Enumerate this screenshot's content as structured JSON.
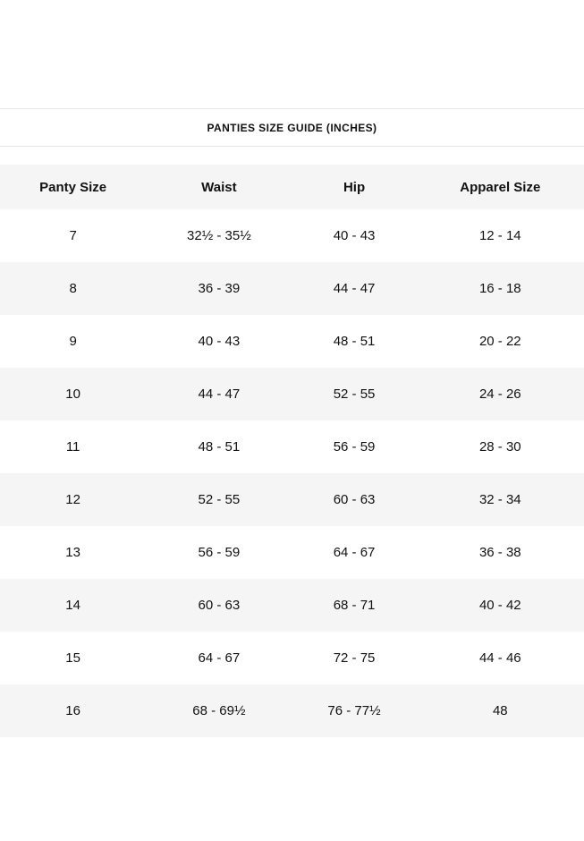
{
  "title": "PANTIES SIZE GUIDE (INCHES)",
  "table": {
    "headers": [
      "Panty Size",
      "Waist",
      "Hip",
      "Apparel Size"
    ],
    "rows": [
      [
        "7",
        "32½ - 35½",
        "40 - 43",
        "12 - 14"
      ],
      [
        "8",
        "36 - 39",
        "44 - 47",
        "16 - 18"
      ],
      [
        "9",
        "40 - 43",
        "48 - 51",
        "20 - 22"
      ],
      [
        "10",
        "44 - 47",
        "52 - 55",
        "24 - 26"
      ],
      [
        "11",
        "48 - 51",
        "56 - 59",
        "28 - 30"
      ],
      [
        "12",
        "52 - 55",
        "60 - 63",
        "32 - 34"
      ],
      [
        "13",
        "56 - 59",
        "64 - 67",
        "36 - 38"
      ],
      [
        "14",
        "60 - 63",
        "68 - 71",
        "40 - 42"
      ],
      [
        "15",
        "64 - 67",
        "72 - 75",
        "44 - 46"
      ],
      [
        "16",
        "68 - 69½",
        "76 - 77½",
        "48"
      ]
    ]
  },
  "colors": {
    "alt_row_bg": "#f5f5f5",
    "divider": "#e7e7e7",
    "text": "#111111"
  }
}
